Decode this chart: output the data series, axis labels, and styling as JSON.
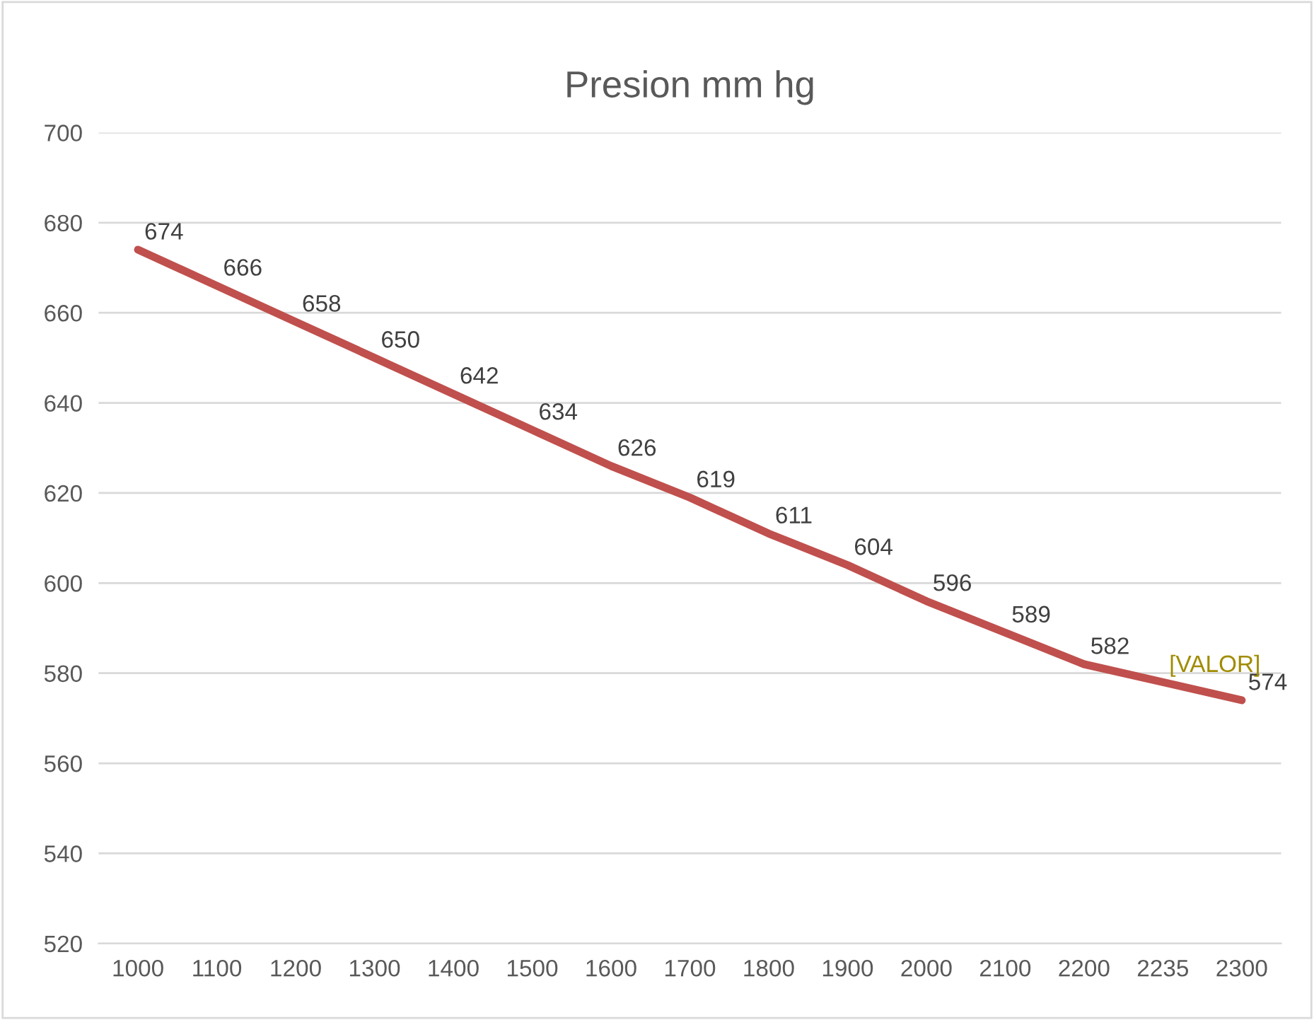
{
  "chart_data": {
    "type": "line",
    "title": "Presion mm hg",
    "categories": [
      "1000",
      "1100",
      "1200",
      "1300",
      "1400",
      "1500",
      "1600",
      "1700",
      "1800",
      "1900",
      "2000",
      "2100",
      "2200",
      "2235",
      "2300"
    ],
    "series": [
      {
        "color": "#c0504d",
        "values": [
          674,
          666,
          658,
          650,
          642,
          634,
          626,
          619,
          611,
          604,
          596,
          589,
          582,
          578,
          574
        ],
        "value_labels": [
          "674",
          "666",
          "658",
          "650",
          "642",
          "634",
          "626",
          "619",
          "611",
          "604",
          "596",
          "589",
          "582",
          null,
          "574"
        ]
      }
    ],
    "annotations": [
      {
        "text": "[VALOR]",
        "x": "2235",
        "y": 578
      }
    ],
    "ylim": [
      520,
      700
    ],
    "yticks": [
      520,
      540,
      560,
      580,
      600,
      620,
      640,
      660,
      680,
      700
    ],
    "grid": "y",
    "legend": false,
    "marker": "none",
    "line_style": "solid"
  }
}
